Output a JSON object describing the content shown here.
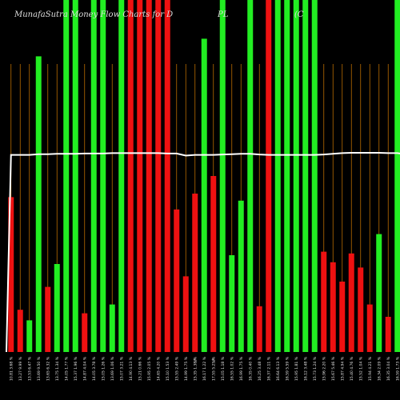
{
  "chart_data": {
    "type": "bar",
    "title": "MunafaSutra Money Flow Charts for D",
    "title_fragments": [
      "PL",
      "(C"
    ],
    "colors": {
      "up": "#22ee22",
      "down": "#ee1111",
      "line": "#ffffff",
      "grid": "#b86b00",
      "background": "#000000"
    },
    "ylim": [
      0,
      100
    ],
    "line_values": [
      56,
      56,
      56,
      56.2,
      56.2,
      56.3,
      56.3,
      56.3,
      56.4,
      56.4,
      56.4,
      56.5,
      56.5,
      56.5,
      56.5,
      56.5,
      56.5,
      56.4,
      56.4,
      55.8,
      56,
      56,
      56,
      56.1,
      56.2,
      56.3,
      56.3,
      56.1,
      56,
      56,
      56,
      56,
      56,
      56,
      56.1,
      56.3,
      56.5,
      56.6,
      56.6,
      56.6,
      56.6,
      56.5,
      56.5,
      56.1,
      56.2,
      56.2,
      56.3,
      56.3,
      56.3,
      56.2
    ],
    "categories": [
      "10.81 3.68 %",
      "13.27 9.99 %",
      "13.53 6.47 %",
      "13.69 9.50 %",
      "13.65 6.32 %",
      "13.75 1.34 %",
      "14.05 1.77 %",
      "15.37 1.96 %",
      "14.87 4.04 %",
      "14.05 3.78 %",
      "15.05 1.26 %",
      "13.69 1.06 %",
      "15.07 3.21 %",
      "14.90 4.13 %",
      "15.21 0.66 %",
      "15.95 2.05 %",
      "14.65 4.20 %",
      "15.10 1.53 %",
      "15.55 2.49 %",
      "14.99 1.75 %",
      "15.35 1.38 %",
      "16.17 1.22 %",
      "17.55 5.25 %",
      "15.05 1.18 %",
      "16.55 1.02 %",
      "16.99 1.75 %",
      "16.35 0.40 %",
      "16.25 3.48 %",
      "16.37 2.11 %",
      "16.64 6.13 %",
      "16.59 5.59 %",
      "15.95 1.81 %",
      "16.12 3.48 %",
      "15.73 1.24 %",
      "15.96 2.20 %",
      "15.67 5.46 %",
      "15.87 4.94 %",
      "15.40 4.76 %",
      "15.52 1.04 %",
      "15.94 4.21 %",
      "16.34 2.09 %",
      "16.35 3.04 %",
      "16.59 1.73 %",
      "15.37 5.22 %",
      "15.90 4.27 %",
      "16.67 1.98 %",
      "16.80 2.54 %",
      "16.19 1.31 %",
      "16.35 1.52 %",
      "16.15 2.06 %"
    ],
    "values": [
      44,
      12,
      9,
      84,
      18.5,
      25,
      100,
      100,
      11,
      100,
      100,
      13.5,
      100,
      100,
      100,
      100,
      100,
      100,
      40.5,
      21.5,
      45,
      89,
      50,
      100,
      27.5,
      43,
      100,
      13,
      100,
      100,
      100,
      100,
      100,
      100,
      28.5,
      25.5,
      20,
      28,
      24,
      13.5,
      33.5,
      10,
      100,
      3.5,
      70,
      34,
      100,
      97,
      15.5,
      15.5
    ],
    "directions": [
      "down",
      "down",
      "up",
      "up",
      "down",
      "up",
      "up",
      "up",
      "down",
      "up",
      "up",
      "up",
      "up",
      "down",
      "down",
      "down",
      "down",
      "down",
      "down",
      "down",
      "down",
      "up",
      "down",
      "up",
      "up",
      "up",
      "up",
      "down",
      "down",
      "up",
      "up",
      "up",
      "up",
      "up",
      "down",
      "down",
      "down",
      "down",
      "down",
      "down",
      "up",
      "down",
      "up",
      "down",
      "up",
      "up",
      "up",
      "up",
      "down",
      "down"
    ],
    "symbols": [
      "",
      "",
      "",
      "",
      "",
      "",
      "",
      "",
      "",
      "",
      "",
      "",
      "",
      "",
      "",
      "",
      "",
      "",
      "",
      "",
      "",
      "",
      "",
      "",
      "",
      "",
      "",
      "",
      "",
      "",
      "",
      "",
      "",
      "",
      "",
      "",
      "",
      "",
      "",
      "",
      "",
      "",
      "",
      "",
      "",
      "",
      "",
      "",
      "",
      ""
    ],
    "symbol_texts": {
      "20": "%",
      "22": "%"
    }
  }
}
